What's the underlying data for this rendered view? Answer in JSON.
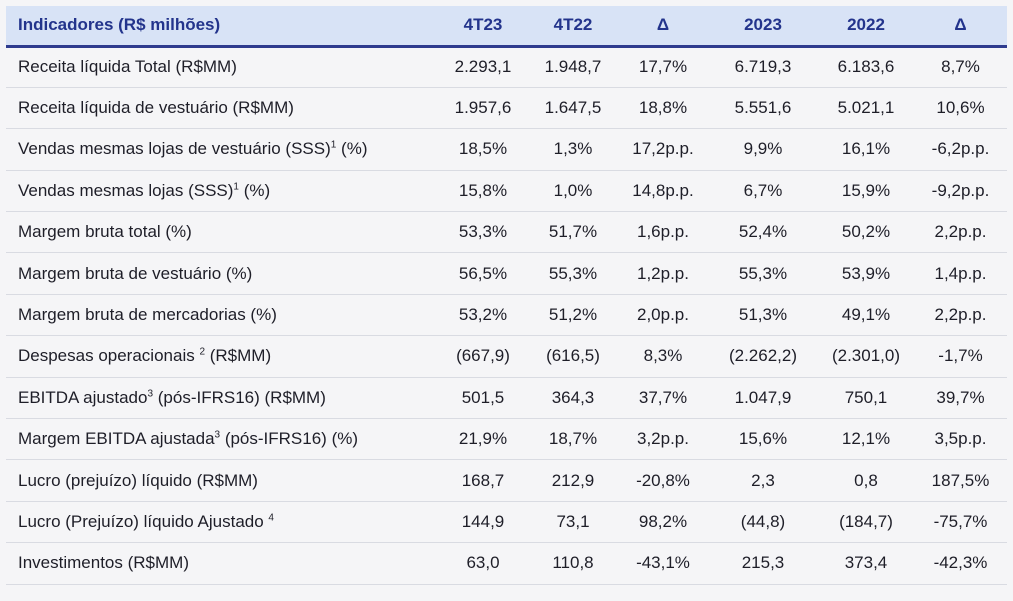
{
  "table": {
    "headers": [
      "Indicadores (R$ milhões)",
      "4T23",
      "4T22",
      "Δ",
      "2023",
      "2022",
      "Δ"
    ],
    "rows": [
      {
        "label": "Receita líquida Total (R$MM)",
        "sup": "",
        "suffix": "",
        "values": [
          "2.293,1",
          "1.948,7",
          "17,7%",
          "6.719,3",
          "6.183,6",
          "8,7%"
        ]
      },
      {
        "label": "Receita líquida de vestuário (R$MM)",
        "sup": "",
        "suffix": "",
        "values": [
          "1.957,6",
          "1.647,5",
          "18,8%",
          "5.551,6",
          "5.021,1",
          "10,6%"
        ]
      },
      {
        "label": "Vendas mesmas lojas de vestuário (SSS)",
        "sup": "1",
        "suffix": " (%)",
        "values": [
          "18,5%",
          "1,3%",
          "17,2p.p.",
          "9,9%",
          "16,1%",
          "-6,2p.p."
        ]
      },
      {
        "label": "Vendas mesmas lojas (SSS)",
        "sup": "1",
        "suffix": " (%)",
        "values": [
          "15,8%",
          "1,0%",
          "14,8p.p.",
          "6,7%",
          "15,9%",
          "-9,2p.p."
        ]
      },
      {
        "label": "Margem bruta total (%)",
        "sup": "",
        "suffix": "",
        "values": [
          "53,3%",
          "51,7%",
          "1,6p.p.",
          "52,4%",
          "50,2%",
          "2,2p.p."
        ]
      },
      {
        "label": "Margem bruta de vestuário (%)",
        "sup": "",
        "suffix": "",
        "values": [
          "56,5%",
          "55,3%",
          "1,2p.p.",
          "55,3%",
          "53,9%",
          "1,4p.p."
        ]
      },
      {
        "label": "Margem bruta de mercadorias (%)",
        "sup": "",
        "suffix": "",
        "values": [
          "53,2%",
          "51,2%",
          "2,0p.p.",
          "51,3%",
          "49,1%",
          "2,2p.p."
        ]
      },
      {
        "label": "Despesas operacionais ",
        "sup": "2",
        "suffix": " (R$MM)",
        "values": [
          "(667,9)",
          "(616,5)",
          "8,3%",
          "(2.262,2)",
          "(2.301,0)",
          "-1,7%"
        ]
      },
      {
        "label": "EBITDA ajustado",
        "sup": "3",
        "suffix": " (pós-IFRS16) (R$MM)",
        "values": [
          "501,5",
          "364,3",
          "37,7%",
          "1.047,9",
          "750,1",
          "39,7%"
        ]
      },
      {
        "label": "Margem EBITDA ajustada",
        "sup": "3",
        "suffix": " (pós-IFRS16) (%)",
        "values": [
          "21,9%",
          "18,7%",
          "3,2p.p.",
          "15,6%",
          "12,1%",
          "3,5p.p."
        ]
      },
      {
        "label": "Lucro (prejuízo) líquido (R$MM)",
        "sup": "",
        "suffix": "",
        "values": [
          "168,7",
          "212,9",
          "-20,8%",
          "2,3",
          "0,8",
          "187,5%"
        ]
      },
      {
        "label": "Lucro (Prejuízo) líquido Ajustado ",
        "sup": "4",
        "suffix": "",
        "values": [
          "144,9",
          "73,1",
          "98,2%",
          "(44,8)",
          "(184,7)",
          "-75,7%"
        ]
      },
      {
        "label": "Investimentos (R$MM)",
        "sup": "",
        "suffix": "",
        "values": [
          "63,0",
          "110,8",
          "-43,1%",
          "215,3",
          "373,4",
          "-42,3%"
        ]
      }
    ]
  }
}
